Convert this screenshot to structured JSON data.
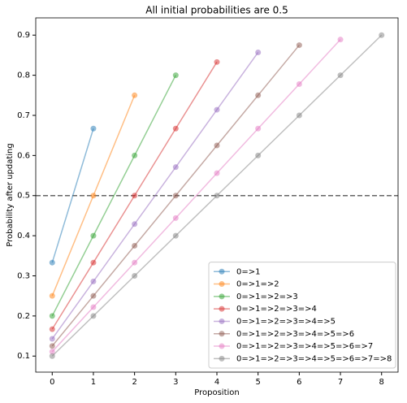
{
  "chart_data": {
    "type": "line",
    "title": "All initial probabilities are 0.5",
    "x_label": "Proposition",
    "y_label": "Probability after updating",
    "xlim": [
      -0.4,
      8.4
    ],
    "xticks": [
      0,
      1,
      2,
      3,
      4,
      5,
      6,
      7,
      8
    ],
    "ylim": [
      0.06,
      0.943
    ],
    "yticks": [
      0.1,
      0.2,
      0.3,
      0.4,
      0.5,
      0.6,
      0.7,
      0.8,
      0.9
    ],
    "hline": 0.5,
    "legend": "lower right",
    "series": [
      {
        "name": "0=>1",
        "color": "#1f77b4",
        "x": [
          0,
          1
        ],
        "values": [
          0.333,
          0.667
        ]
      },
      {
        "name": "0=>1=>2",
        "color": "#ff7f0e",
        "x": [
          0,
          1,
          2
        ],
        "values": [
          0.25,
          0.5,
          0.75
        ]
      },
      {
        "name": "0=>1=>2=>3",
        "color": "#2ca02c",
        "x": [
          0,
          1,
          2,
          3
        ],
        "values": [
          0.2,
          0.4,
          0.6,
          0.8
        ]
      },
      {
        "name": "0=>1=>2=>3=>4",
        "color": "#d62728",
        "x": [
          0,
          1,
          2,
          3,
          4
        ],
        "values": [
          0.167,
          0.333,
          0.5,
          0.667,
          0.833
        ]
      },
      {
        "name": "0=>1=>2=>3=>4=>5",
        "color": "#9467bd",
        "x": [
          0,
          1,
          2,
          3,
          4,
          5
        ],
        "values": [
          0.143,
          0.286,
          0.429,
          0.571,
          0.714,
          0.857
        ]
      },
      {
        "name": "0=>1=>2=>3=>4=>5=>6",
        "color": "#8c564b",
        "x": [
          0,
          1,
          2,
          3,
          4,
          5,
          6
        ],
        "values": [
          0.125,
          0.25,
          0.375,
          0.5,
          0.625,
          0.75,
          0.875
        ]
      },
      {
        "name": "0=>1=>2=>3=>4=>5=>6=>7",
        "color": "#e377c2",
        "x": [
          0,
          1,
          2,
          3,
          4,
          5,
          6,
          7
        ],
        "values": [
          0.111,
          0.222,
          0.333,
          0.444,
          0.556,
          0.667,
          0.778,
          0.889
        ]
      },
      {
        "name": "0=>1=>2=>3=>4=>5=>6=>7=>8",
        "color": "#7f7f7f",
        "x": [
          0,
          1,
          2,
          3,
          4,
          5,
          6,
          7,
          8
        ],
        "values": [
          0.1,
          0.2,
          0.3,
          0.4,
          0.5,
          0.6,
          0.7,
          0.8,
          0.9
        ]
      }
    ]
  }
}
